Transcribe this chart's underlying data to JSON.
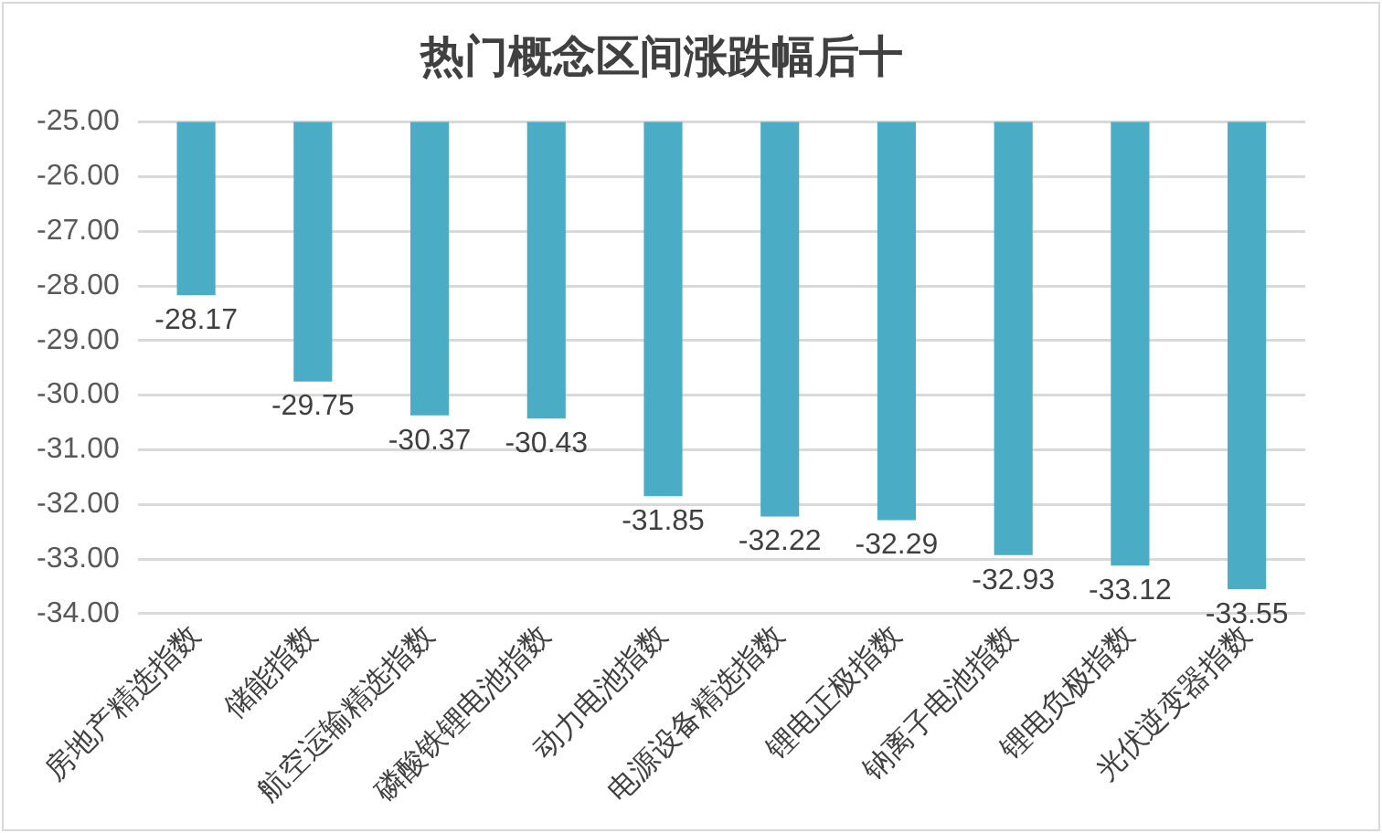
{
  "chart_data": {
    "type": "bar",
    "title": "热门概念区间涨跌幅后十",
    "categories": [
      "房地产精选指数",
      "储能指数",
      "航空运输精选指数",
      "磷酸铁锂电池指数",
      "动力电池指数",
      "电源设备精选指数",
      "锂电正极指数",
      "钠离子电池指数",
      "锂电负极指数",
      "光伏逆变器指数"
    ],
    "values": [
      -28.17,
      -29.75,
      -30.37,
      -30.43,
      -31.85,
      -32.22,
      -32.29,
      -32.93,
      -33.12,
      -33.55
    ],
    "color": "#4bacc6",
    "ylim": [
      -34,
      -25
    ],
    "yticks": [
      {
        "value": -34,
        "label": "-34.00"
      },
      {
        "value": -33,
        "label": "-33.00"
      },
      {
        "value": -32,
        "label": "-32.00"
      },
      {
        "value": -31,
        "label": "-31.00"
      },
      {
        "value": -30,
        "label": "-30.00"
      },
      {
        "value": -29,
        "label": "-29.00"
      },
      {
        "value": -28,
        "label": "-28.00"
      },
      {
        "value": -27,
        "label": "-27.00"
      },
      {
        "value": -26,
        "label": "-26.00"
      },
      {
        "value": -25,
        "label": "-25.00"
      }
    ],
    "grid": "y",
    "legend": false,
    "data_labels": true
  }
}
